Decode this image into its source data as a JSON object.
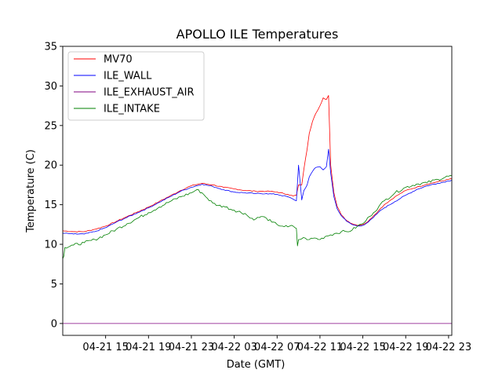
{
  "chart_data": {
    "type": "line",
    "title": "APOLLO ILE Temperatures",
    "xlabel": "Date (GMT)",
    "ylabel": "Temperature (C)",
    "xlim": [
      11.0,
      47.3
    ],
    "ylim": [
      -1.5,
      35
    ],
    "x_unit": "hours since 04-21 00:00 GMT",
    "xticks": [
      {
        "value": 15,
        "label": "04-21 15"
      },
      {
        "value": 19,
        "label": "04-21 19"
      },
      {
        "value": 23,
        "label": "04-21 23"
      },
      {
        "value": 27,
        "label": "04-22 03"
      },
      {
        "value": 31,
        "label": "04-22 07"
      },
      {
        "value": 35,
        "label": "04-22 11"
      },
      {
        "value": 39,
        "label": "04-22 15"
      },
      {
        "value": 43,
        "label": "04-22 19"
      },
      {
        "value": 47,
        "label": "04-22 23"
      }
    ],
    "yticks": [
      0,
      5,
      10,
      15,
      20,
      25,
      30,
      35
    ],
    "legend_position": "top-left",
    "series": [
      {
        "name": "MV70",
        "color": "#ff0000",
        "x": [
          11.0,
          12.0,
          13.0,
          14.0,
          15.0,
          16.0,
          17.0,
          18.0,
          19.0,
          20.0,
          21.0,
          22.0,
          23.0,
          24.0,
          25.0,
          26.0,
          27.0,
          28.0,
          29.0,
          30.0,
          31.0,
          32.0,
          32.5,
          32.8,
          33.0,
          33.3,
          33.5,
          33.8,
          34.0,
          34.3,
          34.6,
          35.0,
          35.3,
          35.6,
          35.8,
          36.0,
          36.3,
          36.6,
          37.0,
          37.5,
          38.0,
          38.5,
          39.0,
          39.5,
          40.0,
          40.5,
          41.0,
          42.0,
          43.0,
          44.0,
          45.0,
          46.0,
          47.0,
          47.3
        ],
        "y": [
          11.7,
          11.6,
          11.6,
          11.9,
          12.3,
          12.9,
          13.5,
          14.1,
          14.7,
          15.4,
          16.1,
          16.8,
          17.4,
          17.7,
          17.5,
          17.2,
          17.0,
          16.8,
          16.7,
          16.7,
          16.6,
          16.3,
          16.1,
          16.2,
          17.5,
          17.5,
          19.5,
          22.0,
          24.0,
          25.5,
          26.5,
          27.5,
          28.5,
          28.3,
          28.8,
          20.0,
          16.5,
          14.8,
          13.7,
          13.0,
          12.6,
          12.4,
          12.5,
          12.9,
          13.6,
          14.3,
          15.0,
          16.0,
          16.8,
          17.2,
          17.6,
          17.9,
          18.2,
          18.3
        ]
      },
      {
        "name": "ILE_WALL",
        "color": "#0000ff",
        "x": [
          11.0,
          12.0,
          13.0,
          14.0,
          15.0,
          16.0,
          17.0,
          18.0,
          19.0,
          20.0,
          21.0,
          22.0,
          23.0,
          24.0,
          25.0,
          26.0,
          27.0,
          28.0,
          29.0,
          30.0,
          31.0,
          32.0,
          32.5,
          32.8,
          33.0,
          33.3,
          33.5,
          33.8,
          34.0,
          34.3,
          34.6,
          35.0,
          35.3,
          35.6,
          35.8,
          36.0,
          36.3,
          36.6,
          37.0,
          37.5,
          38.0,
          38.5,
          39.0,
          39.5,
          40.0,
          40.5,
          41.0,
          42.0,
          43.0,
          44.0,
          45.0,
          46.0,
          47.0,
          47.3
        ],
        "y": [
          11.4,
          11.3,
          11.3,
          11.6,
          12.1,
          12.8,
          13.4,
          14.0,
          14.6,
          15.3,
          16.0,
          16.7,
          17.2,
          17.6,
          17.3,
          16.9,
          16.6,
          16.5,
          16.4,
          16.4,
          16.3,
          16.0,
          15.7,
          15.5,
          20.0,
          15.6,
          16.8,
          17.5,
          18.5,
          19.2,
          19.7,
          19.8,
          19.4,
          19.8,
          22.0,
          19.0,
          16.0,
          14.5,
          13.6,
          12.9,
          12.5,
          12.3,
          12.4,
          12.8,
          13.4,
          14.1,
          14.6,
          15.4,
          16.2,
          16.9,
          17.4,
          17.7,
          18.0,
          18.1
        ]
      },
      {
        "name": "ILE_EXHAUST_AIR",
        "color": "#800080",
        "x": [
          11.0,
          47.3
        ],
        "y": [
          0.0,
          0.0
        ]
      },
      {
        "name": "ILE_INTAKE",
        "color": "#008000",
        "x": [
          11.0,
          11.1,
          11.2,
          12.0,
          13.0,
          14.0,
          15.0,
          16.0,
          17.0,
          18.0,
          19.0,
          20.0,
          21.0,
          22.0,
          23.0,
          23.5,
          24.0,
          24.5,
          25.0,
          25.5,
          26.0,
          27.0,
          28.0,
          28.5,
          29.0,
          29.5,
          30.0,
          30.5,
          31.0,
          31.5,
          32.0,
          32.5,
          32.8,
          32.9,
          33.0,
          33.3,
          33.6,
          34.0,
          34.5,
          35.0,
          35.5,
          36.0,
          36.5,
          37.0,
          37.5,
          38.0,
          38.5,
          39.0,
          39.3,
          39.6,
          40.0,
          40.5,
          41.0,
          42.0,
          43.0,
          44.0,
          45.0,
          46.0,
          47.0,
          47.3
        ],
        "y": [
          8.2,
          8.5,
          9.6,
          9.9,
          10.2,
          10.6,
          11.2,
          11.9,
          12.6,
          13.3,
          14.0,
          14.7,
          15.4,
          16.0,
          16.5,
          16.9,
          16.5,
          15.8,
          15.2,
          14.9,
          14.8,
          14.3,
          13.9,
          13.3,
          13.2,
          13.5,
          13.3,
          12.8,
          12.5,
          12.3,
          12.2,
          12.3,
          12.0,
          9.8,
          10.6,
          10.7,
          10.8,
          10.6,
          10.8,
          10.6,
          11.0,
          11.2,
          11.4,
          11.6,
          11.6,
          11.8,
          12.3,
          12.6,
          13.0,
          13.5,
          14.0,
          14.8,
          15.5,
          16.5,
          17.2,
          17.6,
          17.8,
          18.2,
          18.6,
          18.7
        ]
      }
    ]
  }
}
